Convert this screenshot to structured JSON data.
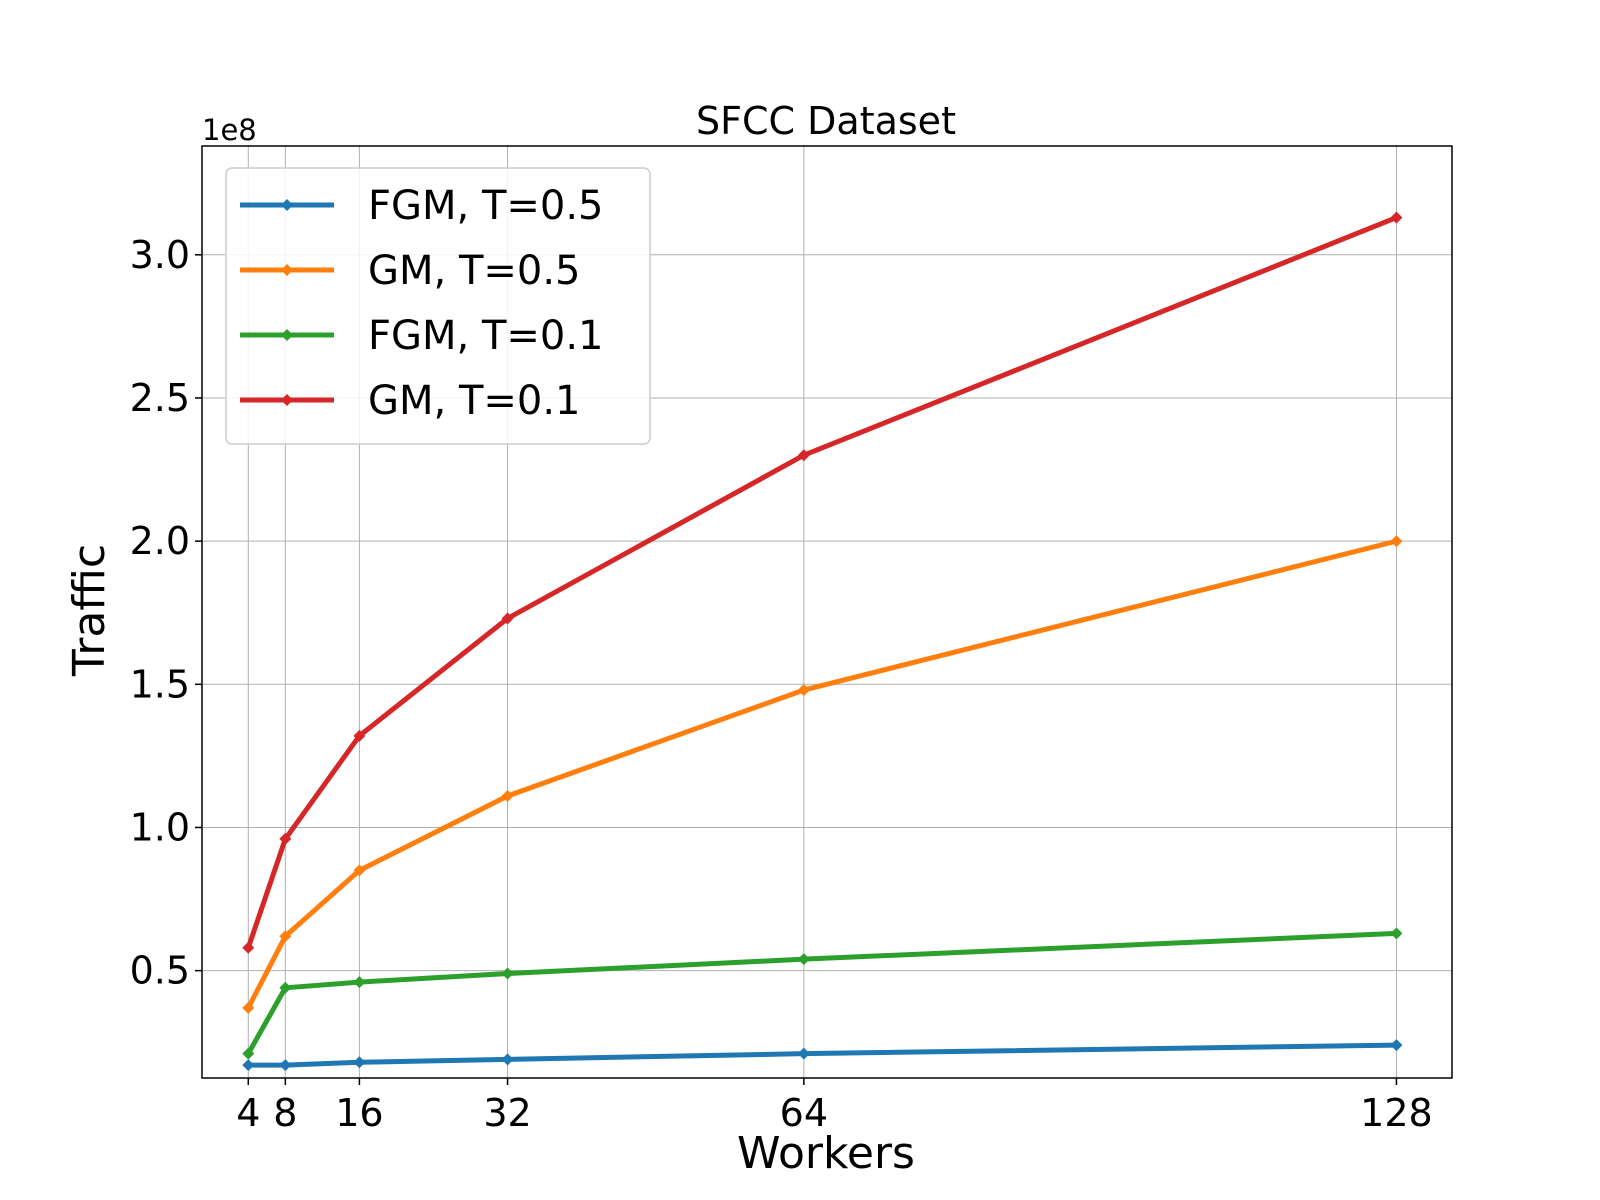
{
  "chart_data": {
    "type": "line",
    "title": "SFCC Dataset",
    "xlabel": "Workers",
    "ylabel": "Traffic",
    "y_offset_label": "1e8",
    "x": [
      4,
      8,
      16,
      32,
      64,
      128
    ],
    "x_ticks": [
      4,
      8,
      16,
      32,
      64,
      128
    ],
    "xlim": [
      -1,
      134
    ],
    "ylim": [
      0.125,
      3.38
    ],
    "y_ticks": [
      0.5,
      1.0,
      1.5,
      2.0,
      2.5,
      3.0
    ],
    "y_tick_labels": [
      "0.5",
      "1.0",
      "1.5",
      "2.0",
      "2.5",
      "3.0"
    ],
    "grid": true,
    "legend_position": "top-left",
    "series": [
      {
        "name": "FGM, T=0.5",
        "color": "#1f77b4",
        "values": [
          0.17,
          0.17,
          0.18,
          0.19,
          0.21,
          0.24
        ]
      },
      {
        "name": "GM, T=0.5",
        "color": "#ff7f0e",
        "values": [
          0.37,
          0.62,
          0.85,
          1.11,
          1.48,
          2.0
        ]
      },
      {
        "name": "FGM, T=0.1",
        "color": "#2ca02c",
        "values": [
          0.21,
          0.44,
          0.46,
          0.49,
          0.54,
          0.63
        ]
      },
      {
        "name": "GM, T=0.1",
        "color": "#d62728",
        "values": [
          0.58,
          0.96,
          1.32,
          1.73,
          2.3,
          3.13
        ]
      }
    ]
  }
}
